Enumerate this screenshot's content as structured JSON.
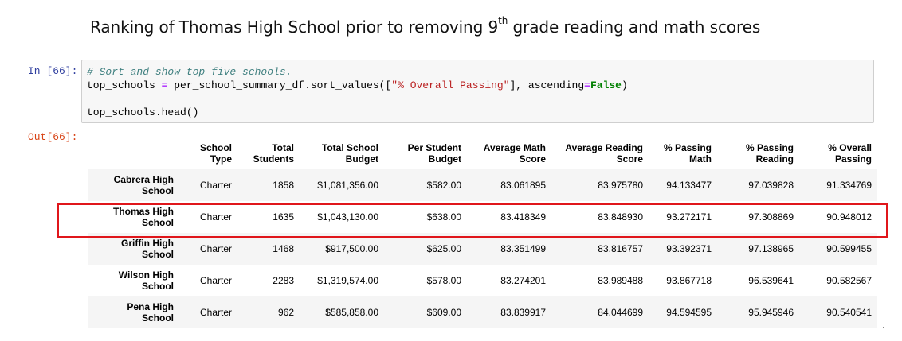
{
  "slide": {
    "title_main": "Ranking of Thomas High School prior to removing 9",
    "title_sup": "th",
    "title_rest": " grade reading and math scores"
  },
  "cell_in": {
    "prompt": "In [66]:",
    "comment": "# Sort and show top five schools.",
    "line2_var": "top_schools ",
    "line2_op": "=",
    "line2_mid": " per_school_summary_df.sort_values([",
    "line2_str": "\"% Overall Passing\"",
    "line2_mid2": "], ascending",
    "line2_op2": "=",
    "line2_kw": "False",
    "line2_end": ")",
    "line4": "top_schools.head()"
  },
  "cell_out": {
    "prompt": "Out[66]:"
  },
  "table": {
    "columns": [
      {
        "l1": "School",
        "l2": "Type"
      },
      {
        "l1": "Total",
        "l2": "Students"
      },
      {
        "l1": "Total School",
        "l2": "Budget"
      },
      {
        "l1": "Per Student",
        "l2": "Budget"
      },
      {
        "l1": "Average Math",
        "l2": "Score"
      },
      {
        "l1": "Average Reading",
        "l2": "Score"
      },
      {
        "l1": "% Passing",
        "l2": "Math"
      },
      {
        "l1": "% Passing",
        "l2": "Reading"
      },
      {
        "l1": "% Overall",
        "l2": "Passing"
      }
    ],
    "rows": [
      {
        "n1": "Cabrera High",
        "n2": "School",
        "cells": [
          "Charter",
          "1858",
          "$1,081,356.00",
          "$582.00",
          "83.061895",
          "83.975780",
          "94.133477",
          "97.039828",
          "91.334769"
        ]
      },
      {
        "n1": "Thomas High",
        "n2": "School",
        "cells": [
          "Charter",
          "1635",
          "$1,043,130.00",
          "$638.00",
          "83.418349",
          "83.848930",
          "93.272171",
          "97.308869",
          "90.948012"
        ]
      },
      {
        "n1": "Griffin High",
        "n2": "School",
        "cells": [
          "Charter",
          "1468",
          "$917,500.00",
          "$625.00",
          "83.351499",
          "83.816757",
          "93.392371",
          "97.138965",
          "90.599455"
        ]
      },
      {
        "n1": "Wilson High",
        "n2": "School",
        "cells": [
          "Charter",
          "2283",
          "$1,319,574.00",
          "$578.00",
          "83.274201",
          "83.989488",
          "93.867718",
          "96.539641",
          "90.582567"
        ]
      },
      {
        "n1": "Pena High",
        "n2": "School",
        "cells": [
          "Charter",
          "962",
          "$585,858.00",
          "$609.00",
          "83.839917",
          "84.044699",
          "94.594595",
          "95.945946",
          "90.540541"
        ]
      }
    ]
  },
  "highlight": {
    "row": "Thomas High School",
    "color": "#e0161b"
  }
}
